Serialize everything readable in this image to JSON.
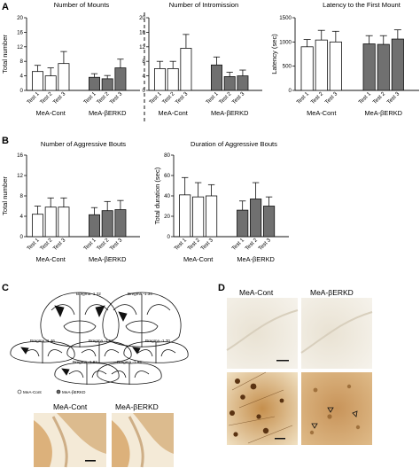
{
  "panels": {
    "a": "A",
    "b": "B",
    "c": "C",
    "d": "D"
  },
  "conditions": [
    "MeA-Cont",
    "MeA-βERKD"
  ],
  "tests": [
    "Test 1",
    "Test 2",
    "Test 3"
  ],
  "colors": {
    "cont": "#ffffff",
    "erkd": "#707070",
    "stroke": "#111111"
  },
  "chart_data": [
    {
      "id": "mounts",
      "type": "bar",
      "title": "Number of Mounts",
      "ylabel": "Total number",
      "ylim": [
        0,
        20
      ],
      "yticks": [
        0,
        4,
        8,
        12,
        16,
        20
      ],
      "series": [
        {
          "values": [
            5.2,
            4.0,
            7.4
          ],
          "errors": [
            1.7,
            2.2,
            3.3
          ]
        },
        {
          "values": [
            3.6,
            3.2,
            6.2
          ],
          "errors": [
            1.0,
            0.9,
            2.4
          ]
        }
      ]
    },
    {
      "id": "intromission",
      "type": "bar",
      "title": "Number of Intromission",
      "ylabel": "",
      "ylim": [
        0,
        20
      ],
      "yticks": [
        0,
        4,
        8,
        12,
        16,
        20
      ],
      "series": [
        {
          "values": [
            6.0,
            6.0,
            11.6
          ],
          "errors": [
            2.0,
            2.0,
            3.8
          ]
        },
        {
          "values": [
            7.0,
            3.8,
            4.0
          ],
          "errors": [
            2.2,
            1.2,
            1.6
          ]
        }
      ]
    },
    {
      "id": "latency",
      "type": "bar",
      "title": "Latency to the First Mount",
      "ylabel": "Latency (sec)",
      "ylim": [
        0,
        1500
      ],
      "yticks": [
        0,
        500,
        1000,
        1500
      ],
      "series": [
        {
          "values": [
            900,
            1040,
            1000
          ],
          "errors": [
            150,
            200,
            220
          ]
        },
        {
          "values": [
            960,
            950,
            1060
          ],
          "errors": [
            170,
            180,
            190
          ]
        }
      ]
    },
    {
      "id": "aggressive-bouts",
      "type": "bar",
      "title": "Number of Aggressive Bouts",
      "ylabel": "Total number",
      "ylim": [
        0,
        16
      ],
      "yticks": [
        0,
        4,
        8,
        12,
        16
      ],
      "series": [
        {
          "values": [
            4.4,
            5.8,
            5.8
          ],
          "errors": [
            1.6,
            1.8,
            1.8
          ]
        },
        {
          "values": [
            4.3,
            5.1,
            5.3
          ],
          "errors": [
            1.4,
            1.8,
            1.8
          ]
        }
      ]
    },
    {
      "id": "aggressive-duration",
      "type": "bar",
      "title": "Duration of Aggressive Bouts",
      "ylabel": "Total duration (sec)",
      "ylim": [
        0,
        80
      ],
      "yticks": [
        0,
        20,
        40,
        60,
        80
      ],
      "series": [
        {
          "values": [
            41,
            39,
            40
          ],
          "errors": [
            17,
            14,
            11
          ]
        },
        {
          "values": [
            26,
            37,
            30
          ],
          "errors": [
            9,
            16,
            9
          ]
        }
      ]
    }
  ],
  "panel_c": {
    "bregma": [
      "Bregma -1.22",
      "Bregma -1.34",
      "Bregma -1.46",
      "Bregma -1.58",
      "Bregma -1.70",
      "Bregma -1.82",
      "Bregma -1.94"
    ],
    "legend": [
      "MeA-Cont",
      "MeA-βERKD"
    ],
    "photo_labels": [
      "MeA-Cont",
      "MeA-βERKD"
    ]
  },
  "panel_d": {
    "photo_labels": [
      "MeA-Cont",
      "MeA-βERKD"
    ]
  }
}
